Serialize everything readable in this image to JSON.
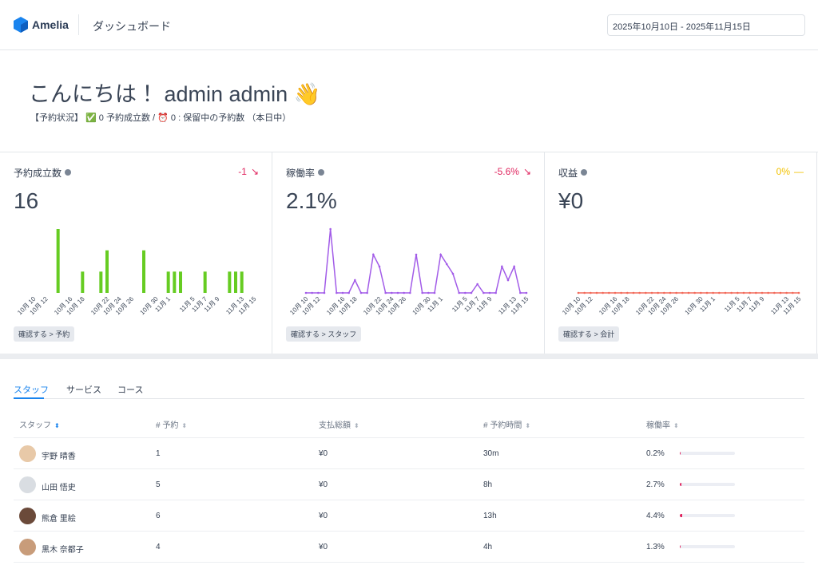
{
  "header": {
    "brand": "Amelia",
    "title": "ダッシュボード",
    "date_range": "2025年10月10日 - 2025年11月15日"
  },
  "greeting": {
    "title": "こんにちは！ admin admin 👋",
    "status": "【予約状況】 ✅ 0 予約成立数 / ⏰ 0 : 保留中の予約数 （本日中）"
  },
  "cards": [
    {
      "label": "予約成立数",
      "change": "-1",
      "value": "16",
      "link": "確認する > 予約",
      "chart_data": {
        "type": "bar",
        "color": "#66cc22",
        "ylim": [
          0,
          3
        ],
        "categories": [
          "10月 10",
          null,
          "10月 12",
          null,
          null,
          null,
          "10月 16",
          null,
          "10月 18",
          null,
          null,
          null,
          "10月 22",
          null,
          "10月 24",
          null,
          "10月 26",
          null,
          null,
          null,
          "10月 30",
          null,
          "11月 1",
          null,
          null,
          null,
          "11月 5",
          null,
          "11月 7",
          null,
          "11月 9",
          null,
          null,
          null,
          "11月 13",
          null,
          "11月 15"
        ],
        "values": [
          0,
          0,
          0,
          0,
          3,
          0,
          0,
          0,
          1,
          0,
          0,
          1,
          2,
          0,
          0,
          0,
          0,
          0,
          2,
          0,
          0,
          0,
          1,
          1,
          1,
          0,
          0,
          0,
          1,
          0,
          0,
          0,
          1,
          1,
          1,
          0,
          0
        ]
      }
    },
    {
      "label": "稼働率",
      "change": "-5.6%",
      "value": "2.1%",
      "link": "確認する > スタッフ",
      "chart_data": {
        "type": "line",
        "color": "#a25ce8",
        "ylim": [
          0,
          8
        ],
        "categories": [
          "10月 10",
          null,
          "10月 12",
          null,
          null,
          null,
          "10月 16",
          null,
          "10月 18",
          null,
          null,
          null,
          "10月 22",
          null,
          "10月 24",
          null,
          "10月 26",
          null,
          null,
          null,
          "10月 30",
          null,
          "11月 1",
          null,
          null,
          null,
          "11月 5",
          null,
          "11月 7",
          null,
          "11月 9",
          null,
          null,
          null,
          "11月 13",
          null,
          "11月 15"
        ],
        "values": [
          0,
          0,
          0,
          0,
          8,
          0,
          0,
          0,
          1.6,
          0,
          0,
          4.8,
          3.3,
          0,
          0,
          0,
          0,
          0,
          4.8,
          0,
          0,
          0,
          4.8,
          3.6,
          2.4,
          0,
          0,
          0,
          1.1,
          0,
          0,
          0,
          3.3,
          1.6,
          3.3,
          0,
          0
        ]
      }
    },
    {
      "label": "収益",
      "change": "0%",
      "value": "¥0",
      "link": "確認する > 会計",
      "chart_data": {
        "type": "line",
        "color": "#f26b5b",
        "ylim": [
          0,
          1
        ],
        "categories": [
          "10月 10",
          null,
          "10月 12",
          null,
          null,
          null,
          "10月 16",
          null,
          "10月 18",
          null,
          null,
          null,
          "10月 22",
          null,
          "10月 24",
          null,
          "10月 26",
          null,
          null,
          null,
          "10月 30",
          null,
          "11月 1",
          null,
          null,
          null,
          "11月 5",
          null,
          "11月 7",
          null,
          "11月 9",
          null,
          null,
          null,
          "11月 13",
          null,
          "11月 15"
        ],
        "values": [
          0,
          0,
          0,
          0,
          0,
          0,
          0,
          0,
          0,
          0,
          0,
          0,
          0,
          0,
          0,
          0,
          0,
          0,
          0,
          0,
          0,
          0,
          0,
          0,
          0,
          0,
          0,
          0,
          0,
          0,
          0,
          0,
          0,
          0,
          0,
          0,
          0
        ]
      }
    }
  ],
  "table": {
    "tabs": [
      "スタッフ",
      "サービス",
      "コース"
    ],
    "columns": [
      "スタッフ",
      "# 予約",
      "支払総額",
      "# 予約時間",
      "稼働率"
    ],
    "rows": [
      [
        "宇野 晴香",
        "1",
        "¥0",
        "30m",
        "0.2%"
      ],
      [
        "山田 悟史",
        "5",
        "¥0",
        "8h",
        "2.7%"
      ],
      [
        "熊倉 里絵",
        "6",
        "¥0",
        "13h",
        "4.4%"
      ],
      [
        "黒木 奈都子",
        "4",
        "¥0",
        "4h",
        "1.3%"
      ]
    ]
  }
}
